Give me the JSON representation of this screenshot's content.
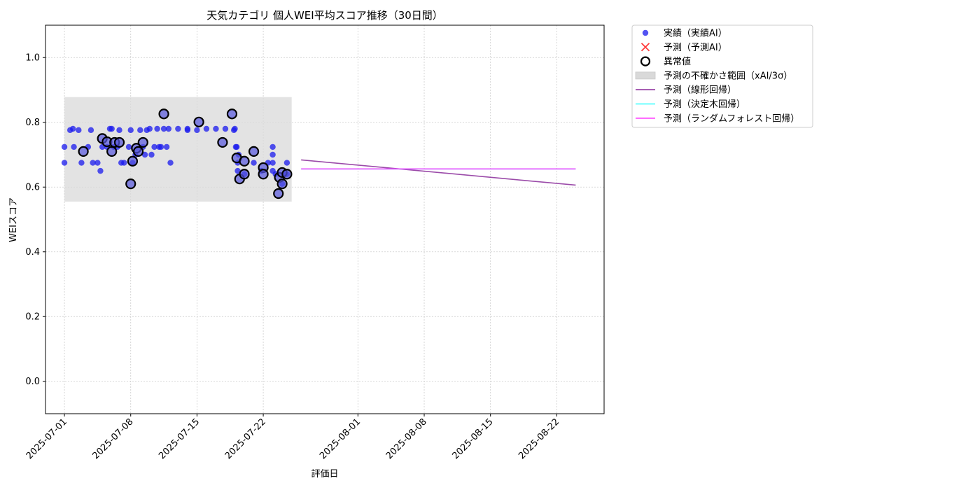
{
  "chart_data": {
    "type": "scatter",
    "title": "天気カテゴリ 個人WEI平均スコア推移（30日間）",
    "xlabel": "評価日",
    "ylabel": "WEIスコア",
    "xlim": [
      "2025-06-29",
      "2025-08-27"
    ],
    "ylim": [
      -0.1,
      1.1
    ],
    "yticks": [
      0.0,
      0.2,
      0.4,
      0.6,
      0.8,
      1.0
    ],
    "ytick_labels": [
      "0.0",
      "0.2",
      "0.4",
      "0.6",
      "0.8",
      "1.0"
    ],
    "xticks": [
      "2025-07-01",
      "2025-07-08",
      "2025-07-15",
      "2025-07-22",
      "2025-08-01",
      "2025-08-08",
      "2025-08-15",
      "2025-08-22"
    ],
    "grid": true,
    "legend_position": "outside-top-right",
    "colors": {
      "actual": "#1a1aee",
      "predicted_x": "#ff3b3b",
      "anomaly": "#000000",
      "band": "#d9d9d9",
      "linear": "#8a2b9a",
      "tree": "#33ffff",
      "forest": "#ff33ff"
    },
    "uncertainty_band": {
      "x": [
        "2025-07-01",
        "2025-07-25"
      ],
      "y": [
        0.555,
        0.878
      ]
    },
    "series": [
      {
        "name": "実績（実績AI）",
        "kind": "scatter",
        "points": [
          [
            "2025-07-01",
            0.675
          ],
          [
            "2025-07-01",
            0.724
          ],
          [
            "2025-07-01.6",
            0.776
          ],
          [
            "2025-07-01.9",
            0.78
          ],
          [
            "2025-07-02",
            0.724
          ],
          [
            "2025-07-02.5",
            0.776
          ],
          [
            "2025-07-02.8",
            0.675
          ],
          [
            "2025-07-03.5",
            0.724
          ],
          [
            "2025-07-03.8",
            0.776
          ],
          [
            "2025-07-04",
            0.675
          ],
          [
            "2025-07-04.5",
            0.675
          ],
          [
            "2025-07-04.8",
            0.65
          ],
          [
            "2025-07-05",
            0.724
          ],
          [
            "2025-07-05.5",
            0.724
          ],
          [
            "2025-07-05.8",
            0.78
          ],
          [
            "2025-07-06",
            0.78
          ],
          [
            "2025-07-06.2",
            0.724
          ],
          [
            "2025-07-06.6",
            0.724
          ],
          [
            "2025-07-06.8",
            0.776
          ],
          [
            "2025-07-07",
            0.675
          ],
          [
            "2025-07-07.3",
            0.675
          ],
          [
            "2025-07-07.8",
            0.724
          ],
          [
            "2025-07-08",
            0.776
          ],
          [
            "2025-07-08.2",
            0.675
          ],
          [
            "2025-07-08.5",
            0.7
          ],
          [
            "2025-07-09",
            0.776
          ],
          [
            "2025-07-09.3",
            0.724
          ],
          [
            "2025-07-09.5",
            0.7
          ],
          [
            "2025-07-09.7",
            0.776
          ],
          [
            "2025-07-10",
            0.78
          ],
          [
            "2025-07-10.2",
            0.7
          ],
          [
            "2025-07-10.5",
            0.724
          ],
          [
            "2025-07-10.8",
            0.78
          ],
          [
            "2025-07-11",
            0.724
          ],
          [
            "2025-07-11.2",
            0.724
          ],
          [
            "2025-07-11.5",
            0.78
          ],
          [
            "2025-07-11.8",
            0.724
          ],
          [
            "2025-07-12",
            0.78
          ],
          [
            "2025-07-12.2",
            0.675
          ],
          [
            "2025-07-13",
            0.78
          ],
          [
            "2025-07-14",
            0.776
          ],
          [
            "2025-07-14",
            0.78
          ],
          [
            "2025-07-15",
            0.776
          ],
          [
            "2025-07-16",
            0.78
          ],
          [
            "2025-07-17",
            0.78
          ],
          [
            "2025-07-18",
            0.78
          ],
          [
            "2025-07-18.9",
            0.776
          ],
          [
            "2025-07-19",
            0.78
          ],
          [
            "2025-07-19.1",
            0.724
          ],
          [
            "2025-07-19.2",
            0.724
          ],
          [
            "2025-07-19.3",
            0.675
          ],
          [
            "2025-07-19.3",
            0.65
          ],
          [
            "2025-07-19.4",
            0.7
          ],
          [
            "2025-07-20",
            0.64
          ],
          [
            "2025-07-21",
            0.675
          ],
          [
            "2025-07-21.8",
            0.65
          ],
          [
            "2025-07-22.5",
            0.675
          ],
          [
            "2025-07-23",
            0.724
          ],
          [
            "2025-07-23",
            0.7
          ],
          [
            "2025-07-23",
            0.675
          ],
          [
            "2025-07-23",
            0.65
          ],
          [
            "2025-07-23.3",
            0.64
          ],
          [
            "2025-07-24",
            0.61
          ],
          [
            "2025-07-24.3",
            0.64
          ],
          [
            "2025-07-24.5",
            0.675
          ],
          [
            "2025-07-24.5",
            0.64
          ]
        ]
      },
      {
        "name": "異常値",
        "kind": "anomaly",
        "points": [
          [
            "2025-07-03",
            0.71
          ],
          [
            "2025-07-05",
            0.75
          ],
          [
            "2025-07-05.5",
            0.74
          ],
          [
            "2025-07-06",
            0.71
          ],
          [
            "2025-07-06.3",
            0.738
          ],
          [
            "2025-07-06.8",
            0.738
          ],
          [
            "2025-07-08",
            0.61
          ],
          [
            "2025-07-08.2",
            0.68
          ],
          [
            "2025-07-08.6",
            0.72
          ],
          [
            "2025-07-08.8",
            0.71
          ],
          [
            "2025-07-09.3",
            0.738
          ],
          [
            "2025-07-11.5",
            0.826
          ],
          [
            "2025-07-15.2",
            0.801
          ],
          [
            "2025-07-17.7",
            0.738
          ],
          [
            "2025-07-18.7",
            0.826
          ],
          [
            "2025-07-19.2",
            0.69
          ],
          [
            "2025-07-19.5",
            0.625
          ],
          [
            "2025-07-20",
            0.68
          ],
          [
            "2025-07-20",
            0.64
          ],
          [
            "2025-07-21",
            0.71
          ],
          [
            "2025-07-22",
            0.66
          ],
          [
            "2025-07-22",
            0.64
          ],
          [
            "2025-07-23.6",
            0.58
          ],
          [
            "2025-07-23.7",
            0.63
          ],
          [
            "2025-07-24",
            0.61
          ],
          [
            "2025-07-24",
            0.645
          ],
          [
            "2025-07-24.5",
            0.64
          ]
        ]
      },
      {
        "name": "予測（線形回帰）",
        "kind": "line",
        "color": "#8a2b9a",
        "points": [
          [
            "2025-07-26",
            0.684
          ],
          [
            "2025-08-24",
            0.606
          ]
        ]
      },
      {
        "name": "予測（決定木回帰）",
        "kind": "line",
        "color": "#33ffff",
        "points": [
          [
            "2025-07-26",
            0.656
          ],
          [
            "2025-08-24",
            0.656
          ]
        ]
      },
      {
        "name": "予測（ランダムフォレスト回帰）",
        "kind": "line",
        "color": "#ff33ff",
        "points": [
          [
            "2025-07-26",
            0.656
          ],
          [
            "2025-08-24",
            0.656
          ]
        ]
      }
    ],
    "legend": [
      {
        "label": "実績（実績AI）",
        "kind": "dot"
      },
      {
        "label": "予測（予測AI）",
        "kind": "x"
      },
      {
        "label": "異常値",
        "kind": "ring"
      },
      {
        "label": "予測の不確かさ範囲（xAI/3σ）",
        "kind": "band"
      },
      {
        "label": "予測（線形回帰）",
        "kind": "line",
        "color": "#8a2b9a"
      },
      {
        "label": "予測（決定木回帰）",
        "kind": "line",
        "color": "#33ffff"
      },
      {
        "label": "予測（ランダムフォレスト回帰）",
        "kind": "line",
        "color": "#ff33ff"
      }
    ]
  }
}
